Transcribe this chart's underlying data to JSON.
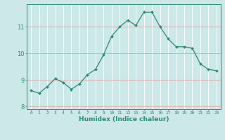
{
  "x": [
    0,
    1,
    2,
    3,
    4,
    5,
    6,
    7,
    8,
    9,
    10,
    11,
    12,
    13,
    14,
    15,
    16,
    17,
    18,
    19,
    20,
    21,
    22,
    23
  ],
  "y": [
    8.6,
    8.5,
    8.75,
    9.05,
    8.9,
    8.65,
    8.85,
    9.2,
    9.4,
    9.95,
    10.65,
    11.0,
    11.25,
    11.05,
    11.55,
    11.55,
    11.0,
    10.55,
    10.25,
    10.25,
    10.2,
    9.6,
    9.4,
    9.35
  ],
  "xlabel": "Humidex (Indice chaleur)",
  "yticks": [
    8,
    9,
    10,
    11
  ],
  "xtick_labels": [
    "0",
    "1",
    "2",
    "3",
    "4",
    "5",
    "6",
    "7",
    "8",
    "9",
    "10",
    "11",
    "12",
    "13",
    "14",
    "15",
    "16",
    "17",
    "18",
    "19",
    "20",
    "21",
    "22",
    "23"
  ],
  "ylim": [
    7.9,
    11.85
  ],
  "xlim": [
    -0.5,
    23.5
  ],
  "line_color": "#2d8b78",
  "marker_color": "#2d8b78",
  "bg_color": "#cce8e8",
  "grid_color_v": "#ffffff",
  "grid_color_h": "#e8a0a0",
  "axis_color": "#2d8b78",
  "tick_color": "#2d8b78",
  "label_color": "#2d8b78",
  "figsize": [
    3.2,
    2.0
  ],
  "dpi": 100
}
